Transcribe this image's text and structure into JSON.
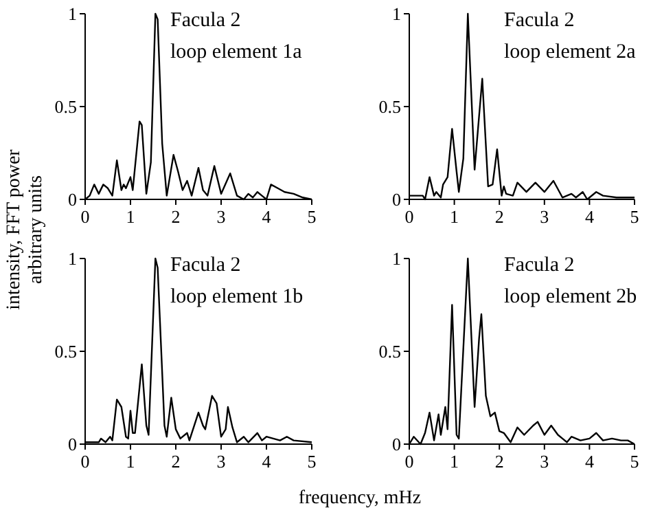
{
  "chart_data": [
    {
      "type": "line",
      "title": "Facula 2",
      "subtitle": "loop element 1a",
      "ylabel": "intensity, FFT power\narbitrary units",
      "xlim": [
        0,
        5
      ],
      "xticks": [
        0,
        1,
        2,
        3,
        4,
        5
      ],
      "ylim": [
        0,
        1
      ],
      "yticks": [
        0,
        0.5,
        1
      ],
      "grid": false,
      "series": [
        {
          "color": "#000000",
          "x": [
            0,
            0.1,
            0.2,
            0.3,
            0.4,
            0.5,
            0.6,
            0.7,
            0.8,
            0.85,
            0.9,
            1.0,
            1.05,
            1.2,
            1.25,
            1.35,
            1.45,
            1.55,
            1.6,
            1.7,
            1.8,
            1.95,
            2.05,
            2.15,
            2.25,
            2.35,
            2.5,
            2.6,
            2.7,
            2.85,
            3.0,
            3.2,
            3.35,
            3.5,
            3.6,
            3.7,
            3.8,
            3.9,
            4.0,
            4.1,
            4.25,
            4.4,
            4.6,
            4.8,
            5.0
          ],
          "values": [
            0,
            0.02,
            0.08,
            0.03,
            0.08,
            0.06,
            0.02,
            0.21,
            0.05,
            0.08,
            0.06,
            0.12,
            0.05,
            0.42,
            0.4,
            0.03,
            0.2,
            1.0,
            0.97,
            0.3,
            0.02,
            0.24,
            0.15,
            0.05,
            0.1,
            0.02,
            0.17,
            0.05,
            0.02,
            0.18,
            0.03,
            0.14,
            0.02,
            0,
            0.03,
            0.01,
            0.04,
            0.02,
            0,
            0.08,
            0.06,
            0.04,
            0.03,
            0.01,
            0
          ]
        }
      ]
    },
    {
      "type": "line",
      "title": "Facula 2",
      "subtitle": "loop element 2a",
      "xlim": [
        0,
        5
      ],
      "xticks": [
        0,
        1,
        2,
        3,
        4,
        5
      ],
      "ylim": [
        0,
        1
      ],
      "yticks": [
        0,
        0.5,
        1
      ],
      "grid": false,
      "series": [
        {
          "color": "#000000",
          "x": [
            0,
            0.3,
            0.35,
            0.45,
            0.55,
            0.6,
            0.7,
            0.75,
            0.85,
            0.95,
            1.05,
            1.1,
            1.2,
            1.3,
            1.45,
            1.55,
            1.62,
            1.75,
            1.85,
            1.95,
            2.05,
            2.1,
            2.15,
            2.3,
            2.4,
            2.6,
            2.8,
            3.0,
            3.2,
            3.4,
            3.6,
            3.7,
            3.85,
            3.95,
            4.15,
            4.3,
            4.6,
            5.0
          ],
          "values": [
            0.02,
            0.02,
            0,
            0.12,
            0.02,
            0.04,
            0.01,
            0.08,
            0.12,
            0.38,
            0.15,
            0.04,
            0.22,
            1.0,
            0.16,
            0.45,
            0.65,
            0.07,
            0.08,
            0.27,
            0.02,
            0.07,
            0.03,
            0.02,
            0.09,
            0.04,
            0.09,
            0.04,
            0.1,
            0.01,
            0.03,
            0.01,
            0.04,
            0,
            0.04,
            0.02,
            0.01,
            0.01
          ]
        }
      ]
    },
    {
      "type": "line",
      "title": "Facula 2",
      "subtitle": "loop element 1b",
      "xlabel": "frequency, mHz",
      "xlim": [
        0,
        5
      ],
      "xticks": [
        0,
        1,
        2,
        3,
        4,
        5
      ],
      "ylim": [
        0,
        1
      ],
      "yticks": [
        0,
        0.5,
        1
      ],
      "grid": false,
      "series": [
        {
          "color": "#000000",
          "x": [
            0,
            0.3,
            0.35,
            0.45,
            0.55,
            0.6,
            0.7,
            0.8,
            0.9,
            0.95,
            1.0,
            1.05,
            1.1,
            1.25,
            1.35,
            1.4,
            1.55,
            1.6,
            1.75,
            1.8,
            1.9,
            2.0,
            2.1,
            2.25,
            2.3,
            2.5,
            2.6,
            2.65,
            2.8,
            2.9,
            3.0,
            3.1,
            3.15,
            3.25,
            3.35,
            3.5,
            3.6,
            3.8,
            3.9,
            4.0,
            4.3,
            4.45,
            4.6,
            5.0
          ],
          "values": [
            0.01,
            0.01,
            0.03,
            0.01,
            0.04,
            0.02,
            0.24,
            0.2,
            0.04,
            0.03,
            0.18,
            0.06,
            0.06,
            0.43,
            0.1,
            0.05,
            1.0,
            0.95,
            0.1,
            0.04,
            0.25,
            0.08,
            0.03,
            0.06,
            0.02,
            0.17,
            0.1,
            0.08,
            0.26,
            0.22,
            0.04,
            0.08,
            0.2,
            0.09,
            0.01,
            0.04,
            0.01,
            0.06,
            0.02,
            0.04,
            0.02,
            0.04,
            0.02,
            0.01
          ]
        }
      ]
    },
    {
      "type": "line",
      "title": "Facula 2",
      "subtitle": "loop element 2b",
      "xlim": [
        0,
        5
      ],
      "xticks": [
        0,
        1,
        2,
        3,
        4,
        5
      ],
      "ylim": [
        0,
        1
      ],
      "yticks": [
        0,
        0.5,
        1
      ],
      "grid": false,
      "series": [
        {
          "color": "#000000",
          "x": [
            0,
            0.1,
            0.25,
            0.35,
            0.45,
            0.55,
            0.65,
            0.7,
            0.8,
            0.85,
            0.95,
            1.05,
            1.1,
            1.3,
            1.45,
            1.55,
            1.6,
            1.7,
            1.8,
            1.9,
            2.0,
            2.1,
            2.25,
            2.4,
            2.55,
            2.75,
            2.85,
            3.0,
            3.15,
            3.3,
            3.4,
            3.5,
            3.6,
            3.8,
            4.0,
            4.15,
            4.3,
            4.5,
            4.7,
            4.85,
            5.0
          ],
          "values": [
            0,
            0.04,
            0,
            0.06,
            0.17,
            0.02,
            0.16,
            0.05,
            0.2,
            0.08,
            0.75,
            0.05,
            0.03,
            1.0,
            0.2,
            0.57,
            0.7,
            0.26,
            0.15,
            0.17,
            0.07,
            0.06,
            0.01,
            0.09,
            0.05,
            0.1,
            0.12,
            0.05,
            0.1,
            0.05,
            0.03,
            0.01,
            0.04,
            0.02,
            0.03,
            0.06,
            0.02,
            0.03,
            0.02,
            0.02,
            0
          ]
        }
      ]
    }
  ]
}
